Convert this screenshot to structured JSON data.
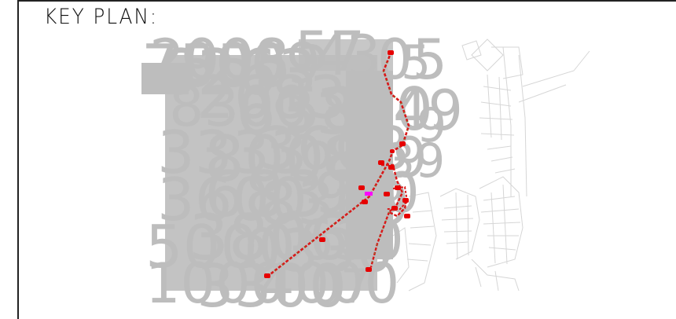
{
  "title": "KEY PLAN:",
  "colors": {
    "frame": "#222222",
    "overlay_text": "#bdbdbd",
    "basemap": "#d6d6d6",
    "route": "#d81818",
    "route_dots": "#39c93a",
    "marker": "#e60000",
    "magenta_marker": "#ff00ff"
  },
  "icons": [
    "route-marker-icon",
    "magenta-marker-icon"
  ]
}
